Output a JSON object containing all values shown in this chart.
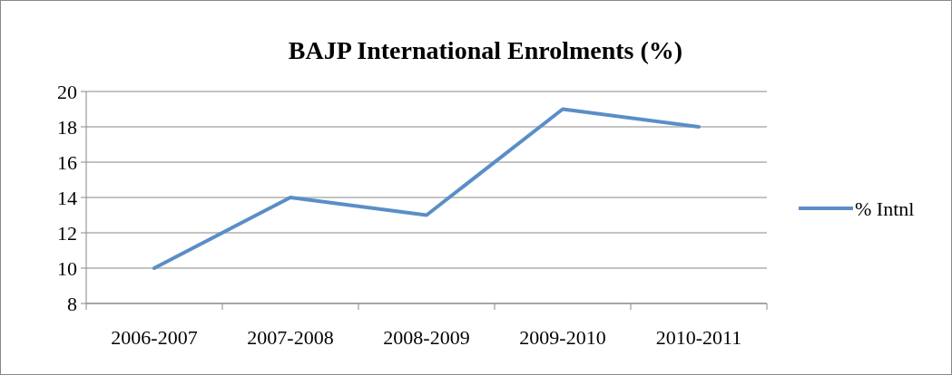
{
  "chart_data": {
    "type": "line",
    "title": "BAJP International Enrolments (%)",
    "categories": [
      "2006-2007",
      "2007-2008",
      "2008-2009",
      "2009-2010",
      "2010-2011"
    ],
    "series": [
      {
        "name": "% Intnl",
        "color": "#5b8ec7",
        "values": [
          10,
          14,
          13,
          19,
          18
        ]
      }
    ],
    "ylim": [
      8,
      20
    ],
    "yticks": [
      8,
      10,
      12,
      14,
      16,
      18,
      20
    ],
    "grid": "y",
    "legend": "right",
    "marker": "none"
  }
}
